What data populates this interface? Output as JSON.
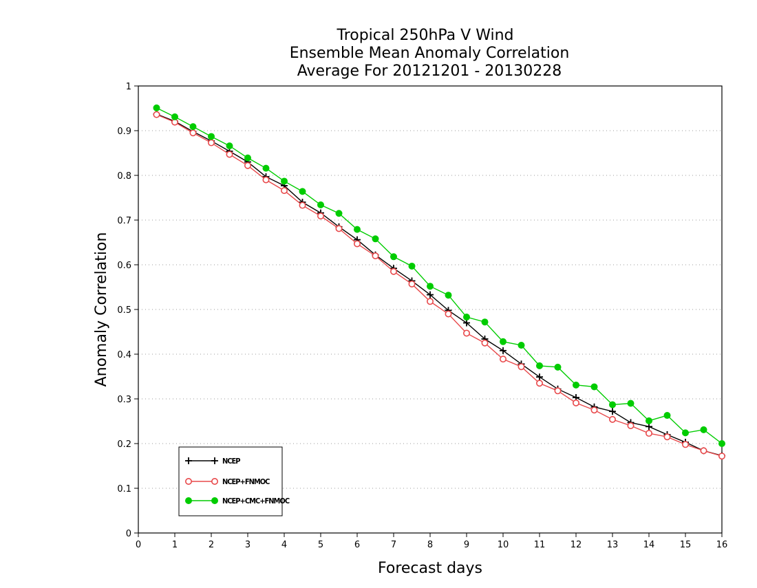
{
  "chart_data": {
    "type": "line",
    "title_lines": [
      "Tropical 250hPa V Wind",
      "Ensemble Mean Anomaly Correlation",
      "Average For 20121201 - 20130228"
    ],
    "xlabel": "Forecast days",
    "ylabel": "Anomaly Correlation",
    "xlim": [
      0,
      16
    ],
    "ylim": [
      0,
      1
    ],
    "x_ticks": [
      "0",
      "1",
      "2",
      "3",
      "4",
      "5",
      "6",
      "7",
      "8",
      "9",
      "10",
      "11",
      "12",
      "13",
      "14",
      "15",
      "16"
    ],
    "y_ticks": [
      "0",
      "0.1",
      "0.2",
      "0.3",
      "0.4",
      "0.5",
      "0.6",
      "0.7",
      "0.8",
      "0.9",
      "1"
    ],
    "grid": "horizontal dotted",
    "legend_position": "bottom-left",
    "x": [
      0.5,
      1,
      1.5,
      2,
      2.5,
      3,
      3.5,
      4,
      4.5,
      5,
      5.5,
      6,
      6.5,
      7,
      7.5,
      8,
      8.5,
      9,
      9.5,
      10,
      10.5,
      11,
      11.5,
      12,
      12.5,
      13,
      13.5,
      14,
      14.5,
      15,
      15.5,
      16
    ],
    "series": [
      {
        "name": "NCEP",
        "color": "#000000",
        "marker": "plus",
        "values": [
          0.937,
          0.921,
          0.898,
          0.877,
          0.854,
          0.83,
          0.797,
          0.777,
          0.74,
          0.716,
          0.685,
          0.656,
          0.622,
          0.592,
          0.564,
          0.533,
          0.498,
          0.47,
          0.434,
          0.408,
          0.378,
          0.349,
          0.322,
          0.303,
          0.282,
          0.272,
          0.247,
          0.238,
          0.22,
          0.203,
          0.184,
          0.173
        ]
      },
      {
        "name": "NCEP+FNMOC",
        "color": "#e8484a",
        "marker": "open-circle",
        "values": [
          0.936,
          0.919,
          0.895,
          0.873,
          0.847,
          0.822,
          0.79,
          0.766,
          0.733,
          0.709,
          0.681,
          0.647,
          0.62,
          0.585,
          0.557,
          0.518,
          0.49,
          0.447,
          0.425,
          0.389,
          0.372,
          0.335,
          0.318,
          0.291,
          0.275,
          0.254,
          0.24,
          0.223,
          0.215,
          0.198,
          0.184,
          0.172
        ]
      },
      {
        "name": "NCEP+CMC+FNMOC",
        "color": "#00cc00",
        "marker": "filled-circle",
        "values": [
          0.951,
          0.931,
          0.909,
          0.887,
          0.866,
          0.839,
          0.816,
          0.787,
          0.764,
          0.734,
          0.715,
          0.679,
          0.658,
          0.618,
          0.597,
          0.552,
          0.532,
          0.483,
          0.472,
          0.428,
          0.42,
          0.374,
          0.371,
          0.331,
          0.327,
          0.287,
          0.29,
          0.251,
          0.263,
          0.224,
          0.231,
          0.2
        ]
      }
    ]
  }
}
